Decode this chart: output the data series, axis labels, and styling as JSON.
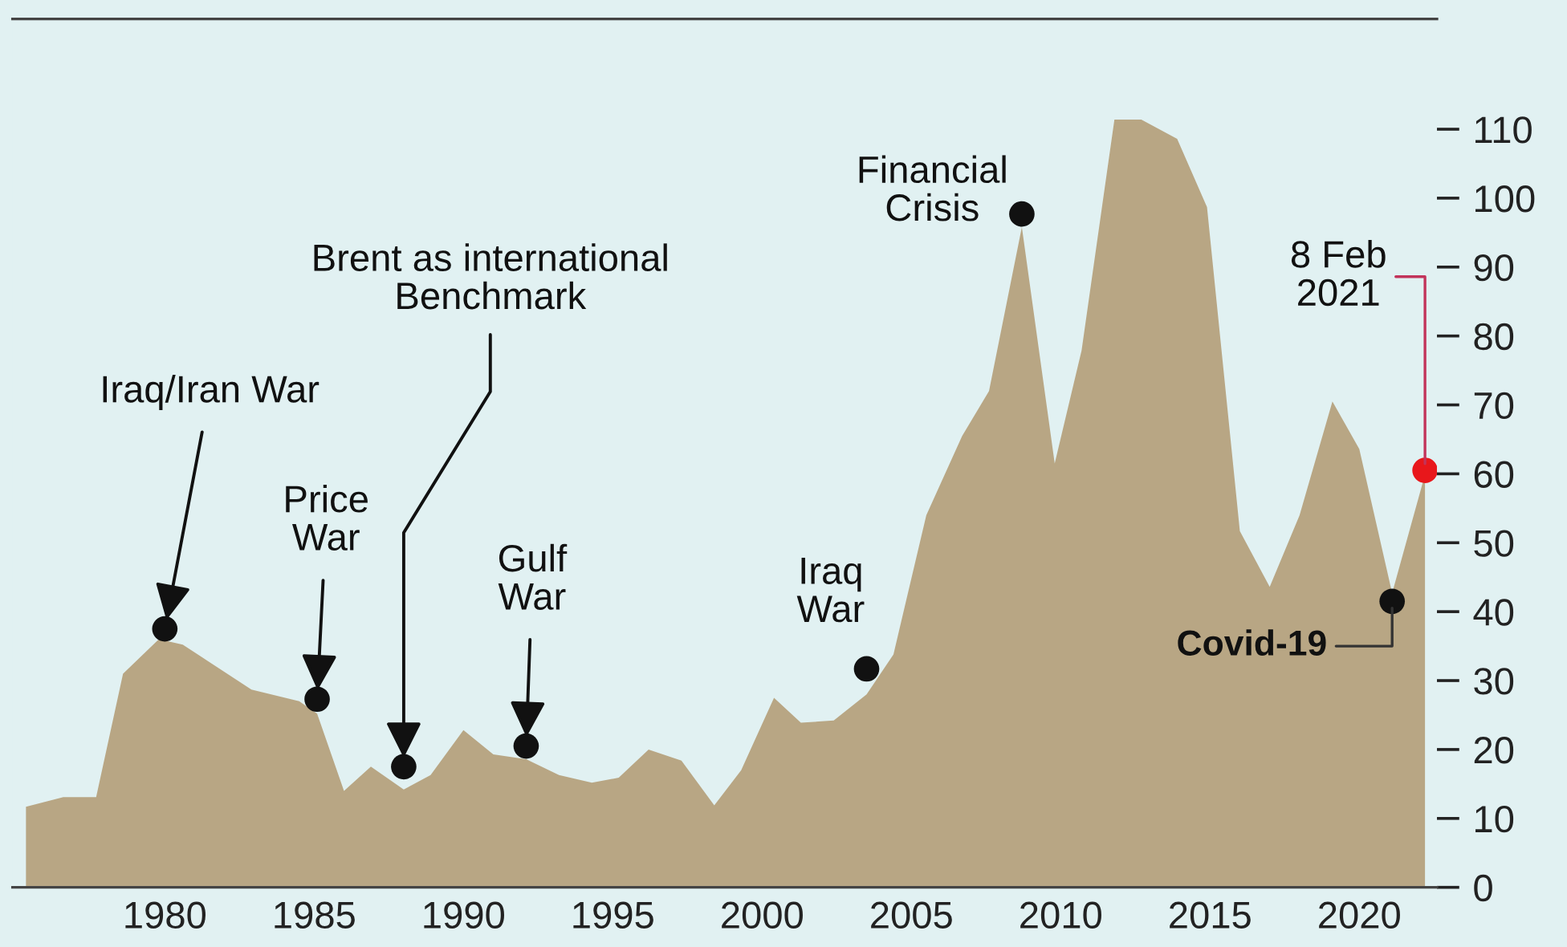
{
  "chart_data": {
    "type": "area",
    "xlim": [
      1974.9,
      2022.6
    ],
    "ylim": [
      0,
      126
    ],
    "xticks": [
      1980,
      1985,
      1990,
      1995,
      2000,
      2005,
      2010,
      2015,
      2020
    ],
    "yticks": [
      0,
      10,
      20,
      30,
      40,
      50,
      60,
      70,
      80,
      90,
      100,
      110
    ],
    "series": [
      {
        "color": "#b8a684",
        "x": [
          1975.35,
          1976.6,
          1977.7,
          1978.6,
          1979.8,
          1980.6,
          1982.9,
          1984.5,
          1985.1,
          1986.0,
          1986.9,
          1988.0,
          1988.9,
          1990.0,
          1991.0,
          1992.1,
          1993.2,
          1994.3,
          1995.2,
          1996.2,
          1997.3,
          1998.4,
          1999.3,
          2000.4,
          2001.3,
          2002.4,
          2003.5,
          2004.4,
          2005.5,
          2006.7,
          2007.6,
          2008.7,
          2009.8,
          2010.7,
          2011.8,
          2012.7,
          2013.9,
          2014.9,
          2016.0,
          2017.0,
          2018.0,
          2019.1,
          2020.0,
          2021.1,
          2022.2
        ],
        "values": [
          11.7,
          13.1,
          13.1,
          31,
          36,
          35.2,
          28.7,
          27,
          25.2,
          14,
          17.5,
          14.2,
          16.3,
          22.8,
          19.3,
          18.6,
          16.3,
          15.2,
          15.9,
          20,
          18.4,
          11.9,
          17,
          27.5,
          23.9,
          24.2,
          28,
          33.8,
          54,
          65.5,
          72,
          95.8,
          61.5,
          77.9,
          111.4,
          111.4,
          108.6,
          98.7,
          51.7,
          43.6,
          54,
          70.5,
          63.6,
          42.7,
          59.9
        ]
      },
      {
        "type": "scatter",
        "color": "#111111",
        "marker": "circle",
        "x": [
          1980.0,
          1985.1,
          1988.0,
          1992.1,
          2003.5,
          2008.7,
          2021.1
        ],
        "values": [
          37.5,
          27.3,
          17.5,
          20.5,
          31.7,
          97.7,
          41.5
        ]
      },
      {
        "type": "scatter",
        "color": "#e8171b",
        "marker": "circle",
        "x": [
          2022.2
        ],
        "values": [
          60.5
        ]
      }
    ],
    "annotations": [
      {
        "text": "Iraq/Iran War",
        "x": 1980.0,
        "y": 37.5
      },
      {
        "text": "Price\nWar",
        "x": 1985.1,
        "y": 27.3
      },
      {
        "text": "Brent as international\nBenchmark",
        "x": 1988.0,
        "y": 17.5
      },
      {
        "text": "Gulf\nWar",
        "x": 1992.1,
        "y": 20.5
      },
      {
        "text": "Iraq\nWar",
        "x": 2003.5,
        "y": 31.7
      },
      {
        "text": "Financial\nCrisis",
        "x": 2008.7,
        "y": 97.7
      },
      {
        "text": "Covid-19",
        "x": 2021.1,
        "y": 41.5
      },
      {
        "text": "8 Feb\n2021",
        "x": 2022.2,
        "y": 60.5
      }
    ]
  }
}
